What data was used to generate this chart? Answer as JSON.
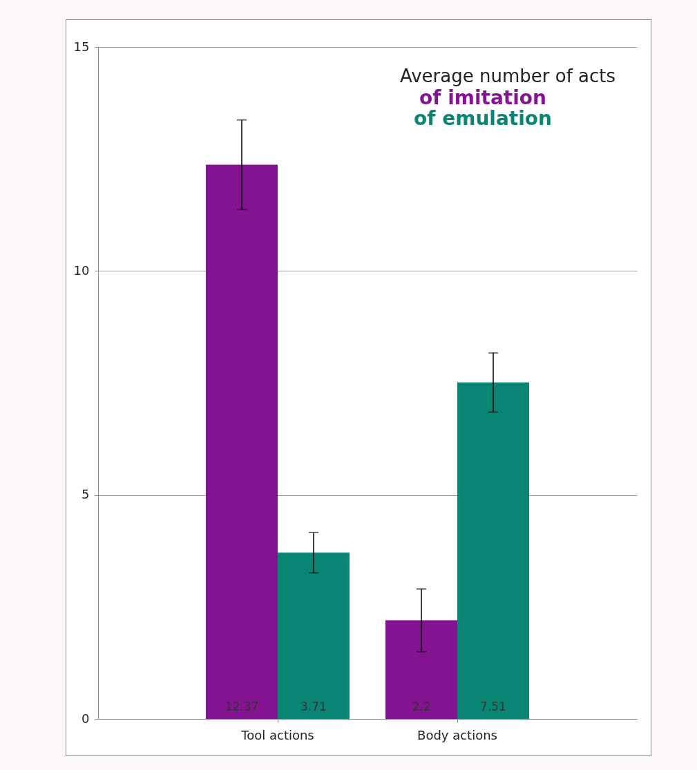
{
  "chart_data": {
    "type": "bar",
    "legend_title": "Average number of acts",
    "categories": [
      "Tool actions",
      "Body actions"
    ],
    "series": [
      {
        "name": "of imitation",
        "color": "#841391",
        "values": [
          12.37,
          2.2
        ],
        "errors": [
          1.0,
          0.7
        ]
      },
      {
        "name": "of emulation",
        "color": "#088573",
        "values": [
          3.71,
          7.51
        ],
        "errors": [
          0.45,
          0.66
        ]
      }
    ],
    "ylim": [
      0,
      15
    ],
    "yticks": [
      0,
      5,
      10,
      15
    ],
    "grid": "y",
    "legend": "top right",
    "data_labels": true
  }
}
